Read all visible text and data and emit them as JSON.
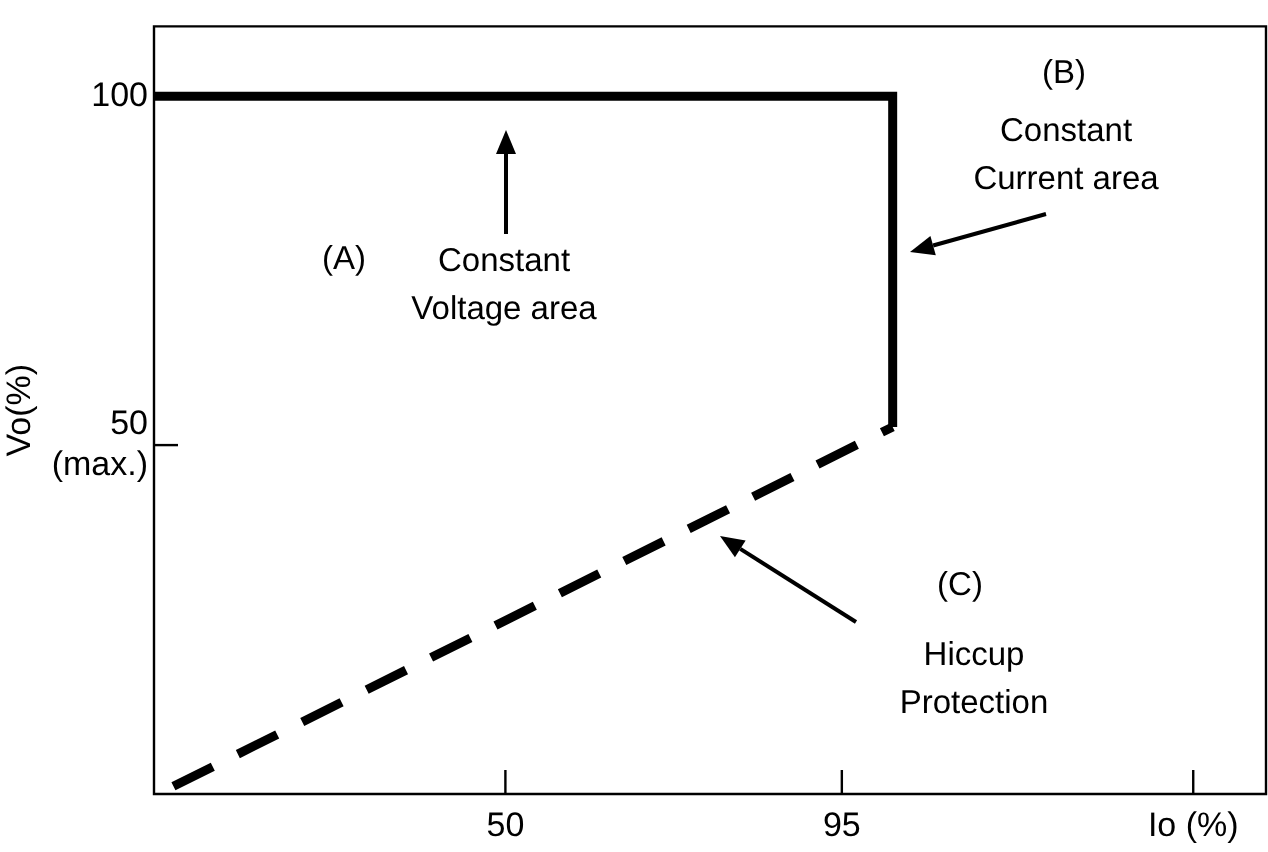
{
  "chart_data": {
    "type": "line",
    "ylabel": "Vo(%)",
    "series": [
      {
        "color": "#000000",
        "line_style": "solid",
        "x": [
          3,
          101.8,
          101.8
        ],
        "values": [
          100,
          100,
          52.6
        ]
      },
      {
        "color": "#000000",
        "line_style": "dashed",
        "x": [
          5.6,
          101.8
        ],
        "values": [
          1.1,
          52.6
        ]
      }
    ],
    "xlim": [
      3,
      152
    ],
    "xticks": [
      50,
      95,
      {
        "value": 142,
        "label": "Io (%)"
      }
    ],
    "ylim": [
      0,
      110
    ],
    "yticks": [
      {
        "value": 50,
        "label": "50\n(max.)"
      },
      100
    ],
    "marker": "none",
    "grid": false,
    "legend": false,
    "annotations": [
      "(A)",
      "Constant\nVoltage area",
      "(B)",
      "Constant\nCurrent area",
      "(C)",
      "Hiccup\nProtection"
    ]
  }
}
